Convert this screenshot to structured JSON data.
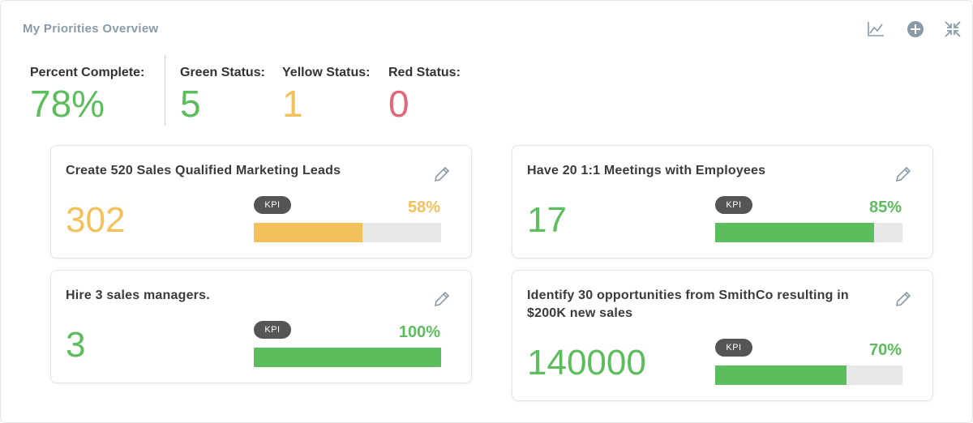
{
  "panel": {
    "title": "My Priorities Overview",
    "icons": [
      "line-chart-icon",
      "plus-circle-icon",
      "collapse-icon"
    ]
  },
  "summary": {
    "percent": {
      "label": "Percent Complete:",
      "value": "78%",
      "color": "#5cbd5d"
    },
    "green": {
      "label": "Green Status:",
      "value": "5",
      "color": "#5cbd5d"
    },
    "yellow": {
      "label": "Yellow Status:",
      "value": "1",
      "color": "#f2c15c"
    },
    "red": {
      "label": "Red Status:",
      "value": "0",
      "color": "#e0687a"
    }
  },
  "cards": [
    {
      "title": "Create 520 Sales Qualified Marketing Leads",
      "value": "302",
      "badge": "KPI",
      "percent": "58%",
      "progress": 0.58,
      "color": "#f2c15c"
    },
    {
      "title": "Have 20 1:1 Meetings with Employees",
      "value": "17",
      "badge": "KPI",
      "percent": "85%",
      "progress": 0.85,
      "color": "#5cbd5d"
    },
    {
      "title": "Hire 3 sales managers.",
      "value": "3",
      "badge": "KPI",
      "percent": "100%",
      "progress": 1.0,
      "color": "#5cbd5d"
    },
    {
      "title": "Identify 30 opportunities from SmithCo resulting in $200K new sales",
      "value": "140000",
      "badge": "KPI",
      "percent": "70%",
      "progress": 0.7,
      "color": "#5cbd5d"
    }
  ]
}
